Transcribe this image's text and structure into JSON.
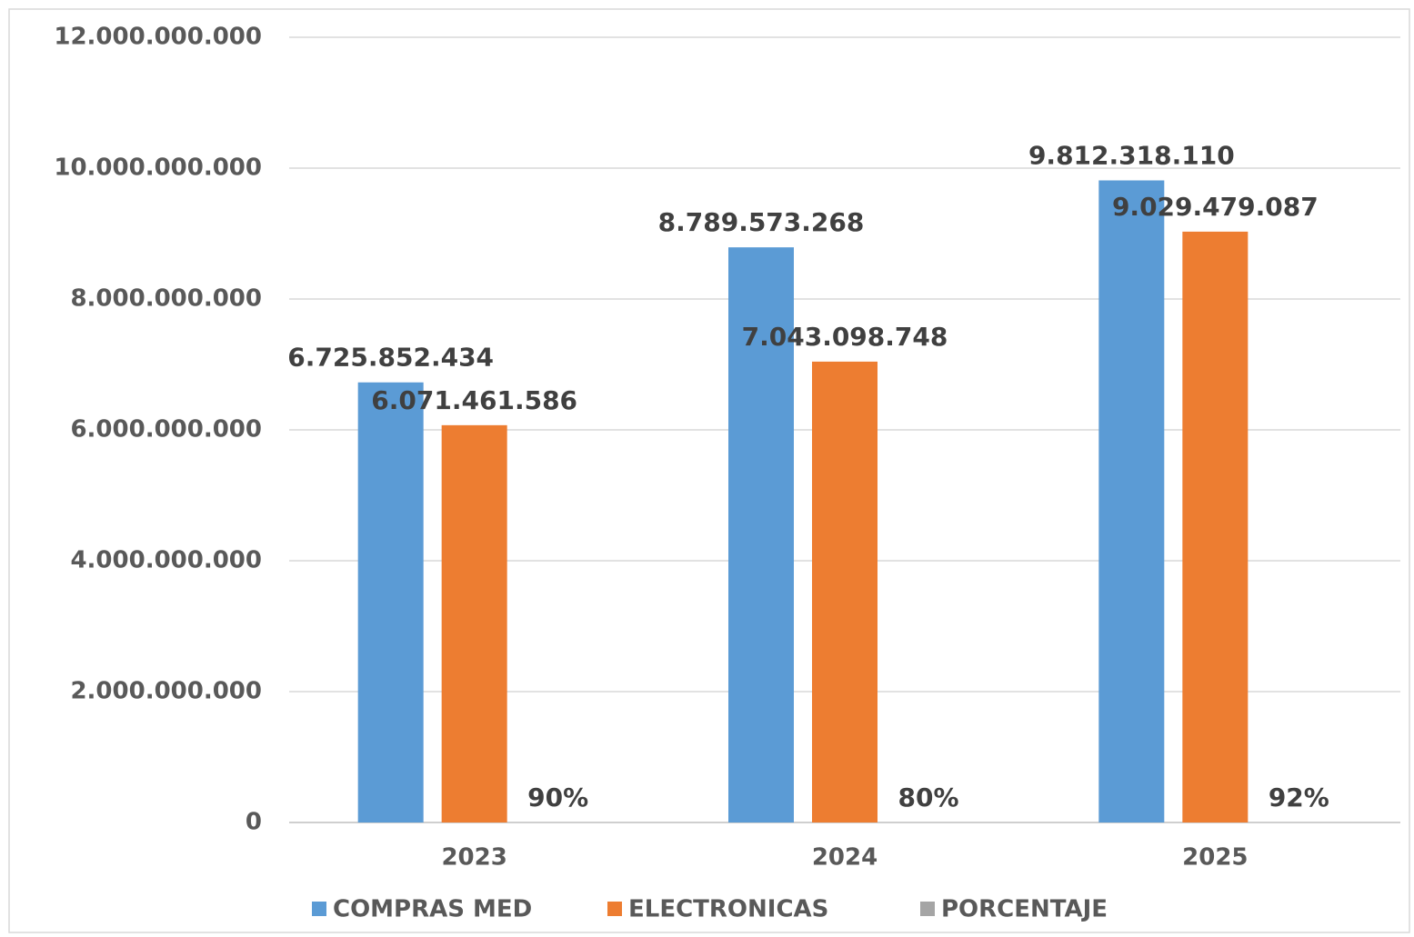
{
  "chart_data": {
    "type": "bar",
    "categories": [
      "2023",
      "2024",
      "2025"
    ],
    "series": [
      {
        "name": "COMPRAS MED",
        "color": "#5b9bd5",
        "values": [
          6725852434,
          8789573268,
          9812318110
        ],
        "value_labels": [
          "6.725.852.434",
          "8.789.573.268",
          "9.812.318.110"
        ]
      },
      {
        "name": "ELECTRONICAS",
        "color": "#ed7d31",
        "values": [
          6071461586,
          7043098748,
          9029479087
        ],
        "value_labels": [
          "6.071.461.586",
          "7.043.098.748",
          "9.029.479.087"
        ]
      },
      {
        "name": "PORCENTAJE",
        "color": "#a5a5a5",
        "values": [
          90,
          80,
          92
        ],
        "value_labels": [
          "90%",
          "80%",
          "92%"
        ]
      }
    ],
    "ylim": [
      0,
      12000000000
    ],
    "yticks": [
      0,
      {
        "value": 2000000000,
        "label": "2.000.000.000"
      },
      {
        "value": 4000000000,
        "label": "4.000.000.000"
      },
      {
        "value": 6000000000,
        "label": "6.000.000.000"
      },
      {
        "value": 8000000000,
        "label": "8.000.000.000"
      },
      {
        "value": 10000000000,
        "label": "10.000.000.000"
      },
      {
        "value": 12000000000,
        "label": "12.000.000.000"
      }
    ],
    "grid": true,
    "legend": "bottom"
  }
}
